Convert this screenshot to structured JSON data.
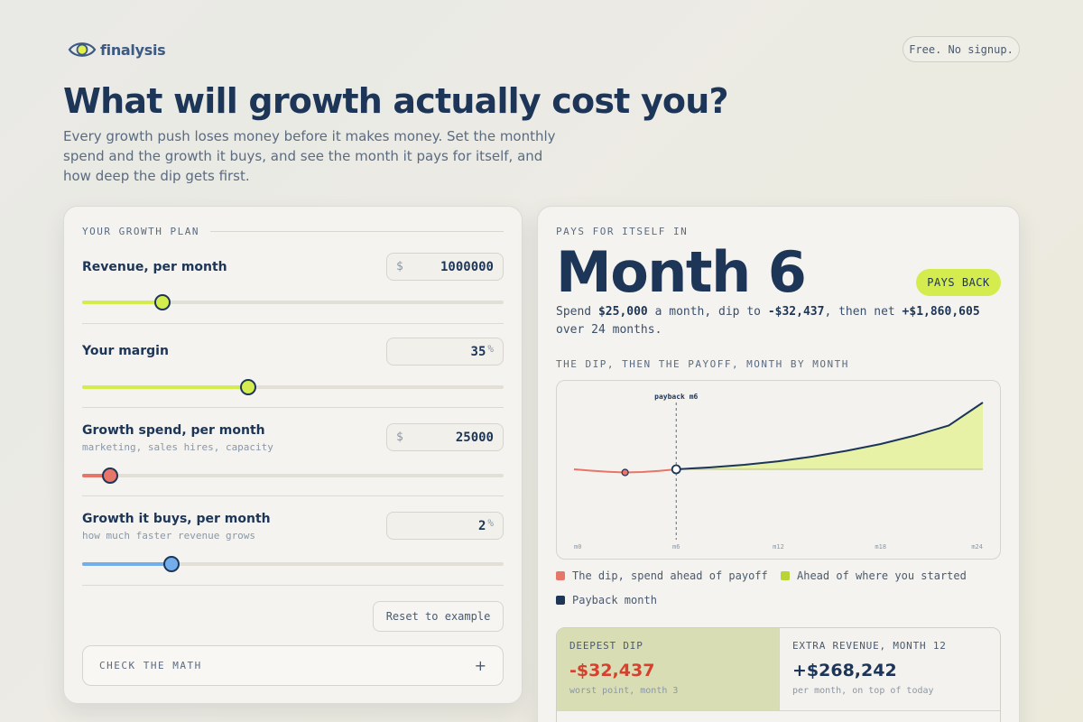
{
  "brand": {
    "name": "finalysis"
  },
  "badge_free": "Free. No signup.",
  "headline": "What will growth actually cost you?",
  "lede": "Every growth push loses money before it makes money. Set the monthly spend and the growth it buys, and see the month it pays for itself, and how deep the dip gets first.",
  "plan": {
    "section_label": "YOUR GROWTH PLAN",
    "fields": [
      {
        "label": "Revenue, per month",
        "sublabel": "",
        "prefix": "$",
        "value": "1000000",
        "suffix": "",
        "slider_fraction": 0.19,
        "color": "#d5ec4e"
      },
      {
        "label": "Your margin",
        "sublabel": "",
        "prefix": "",
        "value": "35",
        "suffix": "%",
        "slider_fraction": 0.395,
        "color": "#d5ec4e"
      },
      {
        "label": "Growth spend, per month",
        "sublabel": "marketing, sales hires, capacity",
        "prefix": "$",
        "value": "25000",
        "suffix": "",
        "slider_fraction": 0.066,
        "color": "#e8756a"
      },
      {
        "label": "Growth it buys, per month",
        "sublabel": "how much faster revenue grows",
        "prefix": "",
        "value": "2",
        "suffix": "%",
        "slider_fraction": 0.212,
        "color": "#73aeea"
      }
    ],
    "reset_label": "Reset to example",
    "math_label": "CHECK THE MATH",
    "math_toggle": "+"
  },
  "result": {
    "label": "PAYS FOR ITSELF IN",
    "big": "Month 6",
    "badge": "PAYS BACK",
    "summary": {
      "t1": "Spend ",
      "spend": "$25,000",
      "t2": " a month, dip to ",
      "dip": "-$32,437",
      "t3": ", then net ",
      "net": "+$1,860,605",
      "t4": " over 24 months."
    },
    "chart_label": "THE DIP, THEN THE PAYOFF, MONTH BY MONTH"
  },
  "chart_data": {
    "type": "area",
    "x_ticks": [
      "m0",
      "m6",
      "m12",
      "m18",
      "m24"
    ],
    "xlim": [
      0,
      24
    ],
    "annotation": "payback m6",
    "payback_month": 6,
    "dip_month": 3,
    "dip_value": -32437,
    "final_value": 1860605,
    "series": [
      {
        "name": "The dip, spend ahead of payoff",
        "color": "#e8756a",
        "x": [
          0,
          1,
          2,
          3,
          4,
          5,
          6
        ],
        "y": [
          0,
          -13500,
          -25200,
          -32437,
          -28000,
          -17000,
          0
        ]
      },
      {
        "name": "Ahead of where you started",
        "color": "#1d3557",
        "fill": "#e8f2a7",
        "x": [
          6,
          8,
          10,
          12,
          14,
          16,
          18,
          20,
          22,
          24
        ],
        "y": [
          0,
          52000,
          125000,
          225000,
          355000,
          515000,
          705000,
          940000,
          1220000,
          1860605
        ]
      }
    ],
    "grid": false
  },
  "legend": [
    {
      "label": "The dip, spend ahead of payoff",
      "color": "#e8756a"
    },
    {
      "label": "Ahead of where you started",
      "color": "#b8d435"
    },
    {
      "label": "Payback month",
      "color": "#1d3557"
    }
  ],
  "stats": [
    {
      "key": "DEEPEST DIP",
      "value": "-$32,437",
      "sub": "worst point, month 3",
      "color": "#d7402e"
    },
    {
      "key": "EXTRA REVENUE, MONTH 12",
      "value": "+$268,242",
      "sub": "per month, on top of today",
      "color": "#1d3557"
    }
  ]
}
